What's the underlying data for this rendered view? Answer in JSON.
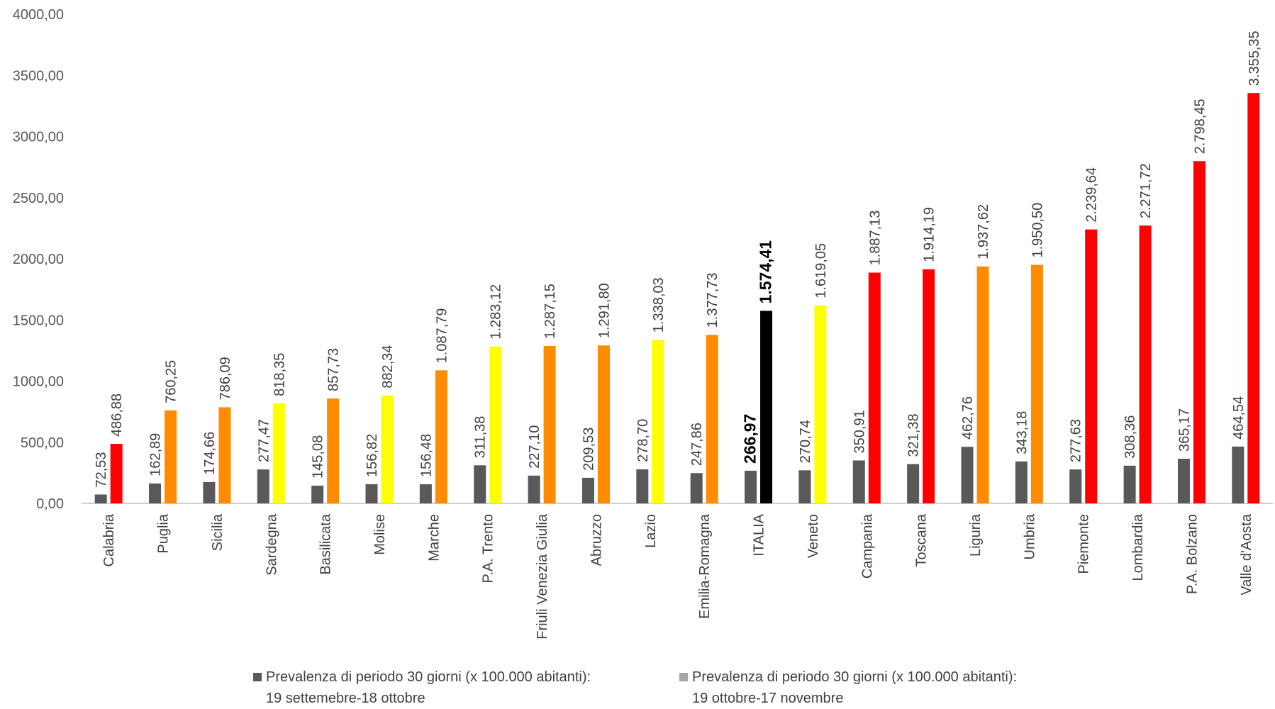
{
  "chart_data": {
    "type": "bar",
    "title": "",
    "xlabel": "",
    "ylabel": "",
    "ylim": [
      0,
      4000
    ],
    "y_ticks": [
      "0,00",
      "500,00",
      "1000,00",
      "1500,00",
      "2000,00",
      "2500,00",
      "3000,00",
      "3500,00",
      "4000,00"
    ],
    "grid": false,
    "legend_position": "bottom",
    "categories": [
      "Calabria",
      "Puglia",
      "Sicilia",
      "Sardegna",
      "Basilicata",
      "Molise",
      "Marche",
      "P.A. Trento",
      "Friuli Venezia Giulia",
      "Abruzzo",
      "Lazio",
      "Emilia-Romagna",
      "ITALIA",
      "Veneto",
      "Campania",
      "Toscana",
      "Liguria",
      "Umbria",
      "Piemonte",
      "Lombardia",
      "P.A. Bolzano",
      "Valle d'Aosta"
    ],
    "series": [
      {
        "name": "Prevalenza di periodo 30 giorni (x 100.000 abitanti): 19 settemebre-18 ottobre",
        "legend_text": "Prevalenza di periodo 30 giorni (x 100.000 abitanti):\n19 settemebre-18 ottobre",
        "color": "#595959",
        "values": [
          72.53,
          162.89,
          174.66,
          277.47,
          145.08,
          156.82,
          156.48,
          311.38,
          227.1,
          209.53,
          278.7,
          247.86,
          266.97,
          270.74,
          350.91,
          321.38,
          462.76,
          343.18,
          277.63,
          308.36,
          365.17,
          464.54
        ],
        "labels": [
          "72,53",
          "162,89",
          "174,66",
          "277,47",
          "145,08",
          "156,82",
          "156,48",
          "311,38",
          "227,10",
          "209,53",
          "278,70",
          "247,86",
          "266,97",
          "270,74",
          "350,91",
          "321,38",
          "462,76",
          "343,18",
          "277,63",
          "308,36",
          "365,17",
          "464,54"
        ]
      },
      {
        "name": "Prevalenza di periodo 30 giorni (x 100.000 abitanti): 19 ottobre-17 novembre",
        "legend_text": "Prevalenza di periodo 30 giorni (x 100.000 abitanti):\n19 ottobre-17 novembre",
        "color": "#a6a6a6",
        "values": [
          486.88,
          760.25,
          786.09,
          818.35,
          857.73,
          882.34,
          1087.79,
          1283.12,
          1287.15,
          1291.8,
          1338.03,
          1377.73,
          1574.41,
          1619.05,
          1887.13,
          1914.19,
          1937.62,
          1950.5,
          2239.64,
          2271.72,
          2798.45,
          3355.35
        ],
        "labels": [
          "486,88",
          "760,25",
          "786,09",
          "818,35",
          "857,73",
          "882,34",
          "1.087,79",
          "1.283,12",
          "1.287,15",
          "1.291,80",
          "1.338,03",
          "1.377,73",
          "1.574,41",
          "1.619,05",
          "1.887,13",
          "1.914,19",
          "1.937,62",
          "1.950,50",
          "2.239,64",
          "2.271,72",
          "2.798,45",
          "3.355,35"
        ],
        "bar_colors": [
          "#ff0000",
          "#ff8c00",
          "#ff8c00",
          "#ffff00",
          "#ff8c00",
          "#ffff00",
          "#ff8c00",
          "#ffff00",
          "#ff8c00",
          "#ff8c00",
          "#ffff00",
          "#ff8c00",
          "#000000",
          "#ffff00",
          "#ff0000",
          "#ff0000",
          "#ff8c00",
          "#ff8c00",
          "#ff0000",
          "#ff0000",
          "#ff0000",
          "#ff0000"
        ]
      }
    ],
    "highlight_category": "ITALIA"
  }
}
